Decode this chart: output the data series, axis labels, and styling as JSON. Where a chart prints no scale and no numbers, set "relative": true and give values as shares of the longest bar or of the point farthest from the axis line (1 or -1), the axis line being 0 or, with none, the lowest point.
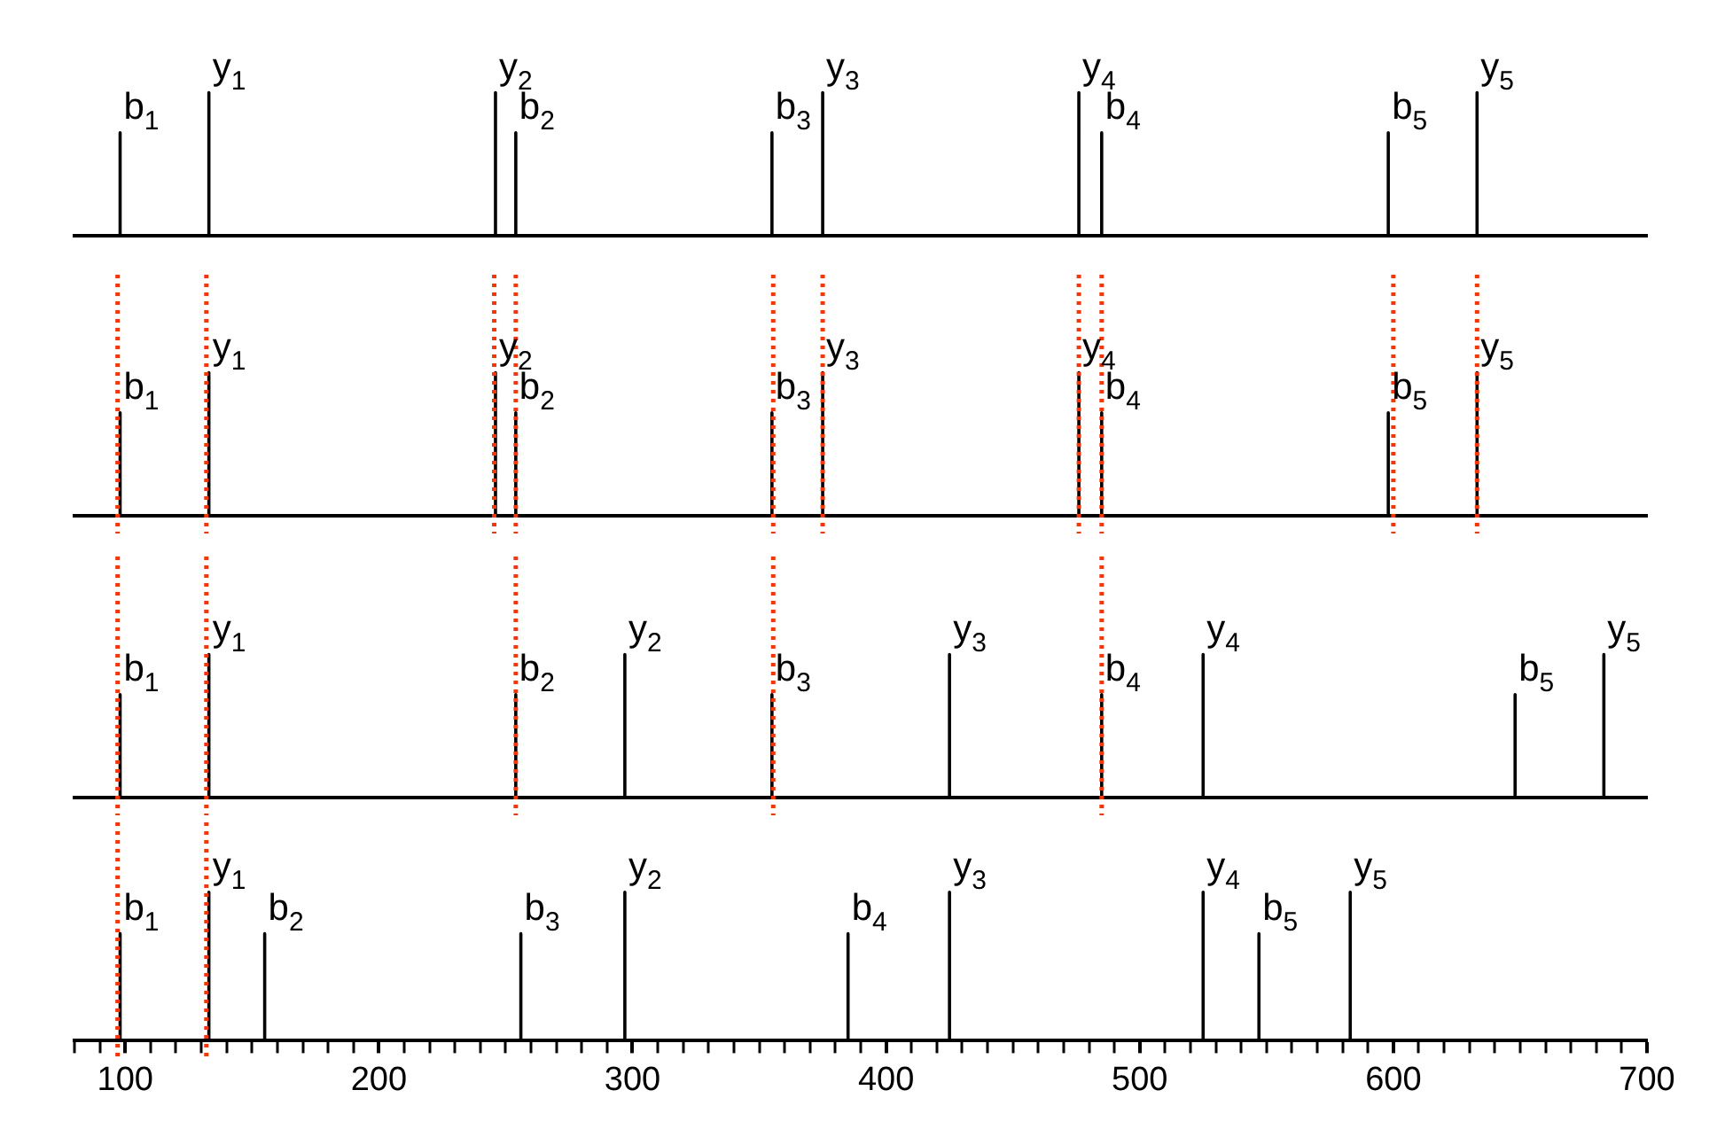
{
  "chart_data": [
    {
      "type": "line",
      "relative": true,
      "marker": "none",
      "xlim": [
        80,
        700
      ],
      "tick_labels": false,
      "grid": false,
      "legend": false,
      "series": [
        {
          "color": "#000000",
          "x": [
            98,
            98,
            98,
            133,
            133,
            133,
            246,
            246,
            246,
            254,
            254,
            254,
            355,
            355,
            355,
            375,
            375,
            375,
            476,
            476,
            476,
            485,
            485,
            485,
            598,
            598,
            598,
            633,
            633,
            633
          ],
          "values": [
            0,
            0.72,
            0,
            0,
            1,
            0,
            0,
            1,
            0,
            0,
            0.72,
            0,
            0,
            0.72,
            0,
            0,
            1,
            0,
            0,
            1,
            0,
            0,
            0.72,
            0,
            0,
            0.72,
            0,
            0,
            1,
            0
          ]
        }
      ],
      "annotations": [
        {
          "text": "b$_{1}$",
          "x": 98,
          "y": 0.72
        },
        {
          "text": "y$_{1}$",
          "x": 133,
          "y": 1
        },
        {
          "text": "y$_{2}$",
          "x": 246,
          "y": 1
        },
        {
          "text": "b$_{2}$",
          "x": 254,
          "y": 0.72
        },
        {
          "text": "b$_{3}$",
          "x": 355,
          "y": 0.72
        },
        {
          "text": "y$_{3}$",
          "x": 375,
          "y": 1
        },
        {
          "text": "y$_{4}$",
          "x": 476,
          "y": 1
        },
        {
          "text": "b$_{4}$",
          "x": 485,
          "y": 0.72
        },
        {
          "text": "b$_{5}$",
          "x": 598,
          "y": 0.72
        },
        {
          "text": "y$_{5}$",
          "x": 633,
          "y": 1
        }
      ]
    },
    {
      "type": "line",
      "relative": true,
      "marker": "none",
      "xlim": [
        80,
        700
      ],
      "tick_labels": false,
      "grid": false,
      "legend": false,
      "series": [
        {
          "color": "#000000",
          "x": [
            98,
            98,
            98,
            133,
            133,
            133,
            246,
            246,
            246,
            254,
            254,
            254,
            355,
            355,
            355,
            375,
            375,
            375,
            476,
            476,
            476,
            485,
            485,
            485,
            598,
            598,
            598,
            633,
            633,
            633
          ],
          "values": [
            0,
            0.72,
            0,
            0,
            1,
            0,
            0,
            1,
            0,
            0,
            0.72,
            0,
            0,
            0.72,
            0,
            0,
            1,
            0,
            0,
            1,
            0,
            0,
            0.72,
            0,
            0,
            0.72,
            0,
            0,
            1,
            0
          ]
        }
      ],
      "annotations": [
        {
          "text": "b$_{1}$",
          "x": 98,
          "y": 0.72
        },
        {
          "text": "y$_{1}$",
          "x": 133,
          "y": 1
        },
        {
          "text": "y$_{2}$",
          "x": 246,
          "y": 1
        },
        {
          "text": "b$_{2}$",
          "x": 254,
          "y": 0.72
        },
        {
          "text": "b$_{3}$",
          "x": 355,
          "y": 0.72
        },
        {
          "text": "y$_{3}$",
          "x": 375,
          "y": 1
        },
        {
          "text": "y$_{4}$",
          "x": 476,
          "y": 1
        },
        {
          "text": "b$_{4}$",
          "x": 485,
          "y": 0.72
        },
        {
          "text": "b$_{5}$",
          "x": 598,
          "y": 0.72
        },
        {
          "text": "y$_{5}$",
          "x": 633,
          "y": 1
        }
      ],
      "ref_lines": [
        {
          "axis": "x",
          "value": 97,
          "color": "#ff3300",
          "line_style": "dotted"
        },
        {
          "axis": "x",
          "value": 132,
          "color": "#ff3300",
          "line_style": "dotted"
        },
        {
          "axis": "x",
          "value": 245.5,
          "color": "#ff3300",
          "line_style": "dotted"
        },
        {
          "axis": "x",
          "value": 254,
          "color": "#ff3300",
          "line_style": "dotted"
        },
        {
          "axis": "x",
          "value": 355.5,
          "color": "#ff3300",
          "line_style": "dotted"
        },
        {
          "axis": "x",
          "value": 375,
          "color": "#ff3300",
          "line_style": "dotted"
        },
        {
          "axis": "x",
          "value": 476,
          "color": "#ff3300",
          "line_style": "dotted"
        },
        {
          "axis": "x",
          "value": 485,
          "color": "#ff3300",
          "line_style": "dotted"
        },
        {
          "axis": "x",
          "value": 600,
          "color": "#ff3300",
          "line_style": "dotted"
        },
        {
          "axis": "x",
          "value": 633,
          "color": "#ff3300",
          "line_style": "dotted"
        }
      ]
    },
    {
      "type": "line",
      "relative": true,
      "marker": "none",
      "xlim": [
        80,
        700
      ],
      "tick_labels": false,
      "grid": false,
      "legend": false,
      "series": [
        {
          "color": "#000000",
          "x": [
            98,
            98,
            98,
            133,
            133,
            133,
            254,
            254,
            254,
            297,
            297,
            297,
            355,
            355,
            355,
            425,
            425,
            425,
            485,
            485,
            485,
            525,
            525,
            525,
            648,
            648,
            648,
            683,
            683,
            683
          ],
          "values": [
            0,
            0.72,
            0,
            0,
            1,
            0,
            0,
            0.72,
            0,
            0,
            1,
            0,
            0,
            0.72,
            0,
            0,
            1,
            0,
            0,
            0.72,
            0,
            0,
            1,
            0,
            0,
            0.72,
            0,
            0,
            1,
            0
          ]
        }
      ],
      "annotations": [
        {
          "text": "b$_{1}$",
          "x": 98,
          "y": 0.72
        },
        {
          "text": "y$_{1}$",
          "x": 133,
          "y": 1
        },
        {
          "text": "b$_{2}$",
          "x": 254,
          "y": 0.72
        },
        {
          "text": "y$_{2}$",
          "x": 297,
          "y": 1
        },
        {
          "text": "b$_{3}$",
          "x": 355,
          "y": 0.72
        },
        {
          "text": "y$_{3}$",
          "x": 425,
          "y": 1
        },
        {
          "text": "b$_{4}$",
          "x": 485,
          "y": 0.72
        },
        {
          "text": "y$_{4}$",
          "x": 525,
          "y": 1
        },
        {
          "text": "b$_{5}$",
          "x": 648,
          "y": 0.72
        },
        {
          "text": "y$_{5}$",
          "x": 683,
          "y": 1
        }
      ],
      "ref_lines": [
        {
          "axis": "x",
          "value": 97,
          "color": "#ff3300",
          "line_style": "dotted"
        },
        {
          "axis": "x",
          "value": 132,
          "color": "#ff3300",
          "line_style": "dotted"
        },
        {
          "axis": "x",
          "value": 254,
          "color": "#ff3300",
          "line_style": "dotted"
        },
        {
          "axis": "x",
          "value": 355.5,
          "color": "#ff3300",
          "line_style": "dotted"
        },
        {
          "axis": "x",
          "value": 485,
          "color": "#ff3300",
          "line_style": "dotted"
        }
      ]
    },
    {
      "type": "line",
      "relative": true,
      "marker": "none",
      "xlim": [
        80,
        700
      ],
      "tick_labels": "x",
      "grid": false,
      "legend": false,
      "xticks": [
        {
          "value": 80,
          "label": null
        },
        {
          "value": 90,
          "label": null
        },
        100,
        {
          "value": 110,
          "label": null
        },
        {
          "value": 120,
          "label": null
        },
        {
          "value": 130,
          "label": null
        },
        {
          "value": 140,
          "label": null
        },
        {
          "value": 150,
          "label": null
        },
        {
          "value": 160,
          "label": null
        },
        {
          "value": 170,
          "label": null
        },
        {
          "value": 180,
          "label": null
        },
        {
          "value": 190,
          "label": null
        },
        200,
        {
          "value": 210,
          "label": null
        },
        {
          "value": 220,
          "label": null
        },
        {
          "value": 230,
          "label": null
        },
        {
          "value": 240,
          "label": null
        },
        {
          "value": 250,
          "label": null
        },
        {
          "value": 260,
          "label": null
        },
        {
          "value": 270,
          "label": null
        },
        {
          "value": 280,
          "label": null
        },
        {
          "value": 290,
          "label": null
        },
        300,
        {
          "value": 310,
          "label": null
        },
        {
          "value": 320,
          "label": null
        },
        {
          "value": 330,
          "label": null
        },
        {
          "value": 340,
          "label": null
        },
        {
          "value": 350,
          "label": null
        },
        {
          "value": 360,
          "label": null
        },
        {
          "value": 370,
          "label": null
        },
        {
          "value": 380,
          "label": null
        },
        {
          "value": 390,
          "label": null
        },
        400,
        {
          "value": 410,
          "label": null
        },
        {
          "value": 420,
          "label": null
        },
        {
          "value": 430,
          "label": null
        },
        {
          "value": 440,
          "label": null
        },
        {
          "value": 450,
          "label": null
        },
        {
          "value": 460,
          "label": null
        },
        {
          "value": 470,
          "label": null
        },
        {
          "value": 480,
          "label": null
        },
        {
          "value": 490,
          "label": null
        },
        500,
        {
          "value": 510,
          "label": null
        },
        {
          "value": 520,
          "label": null
        },
        {
          "value": 530,
          "label": null
        },
        {
          "value": 540,
          "label": null
        },
        {
          "value": 550,
          "label": null
        },
        {
          "value": 560,
          "label": null
        },
        {
          "value": 570,
          "label": null
        },
        {
          "value": 580,
          "label": null
        },
        {
          "value": 590,
          "label": null
        },
        600,
        {
          "value": 610,
          "label": null
        },
        {
          "value": 620,
          "label": null
        },
        {
          "value": 630,
          "label": null
        },
        {
          "value": 640,
          "label": null
        },
        {
          "value": 650,
          "label": null
        },
        {
          "value": 660,
          "label": null
        },
        {
          "value": 670,
          "label": null
        },
        {
          "value": 680,
          "label": null
        },
        {
          "value": 690,
          "label": null
        },
        700
      ],
      "series": [
        {
          "color": "#000000",
          "x": [
            98,
            98,
            98,
            133,
            133,
            133,
            155,
            155,
            155,
            256,
            256,
            256,
            297,
            297,
            297,
            385,
            385,
            385,
            425,
            425,
            425,
            525,
            525,
            525,
            547,
            547,
            547,
            583,
            583,
            583
          ],
          "values": [
            0,
            0.72,
            0,
            0,
            1,
            0,
            0,
            0.72,
            0,
            0,
            0.72,
            0,
            0,
            1,
            0,
            0,
            0.72,
            0,
            0,
            1,
            0,
            0,
            1,
            0,
            0,
            0.72,
            0,
            0,
            1,
            0
          ]
        }
      ],
      "annotations": [
        {
          "text": "b$_{1}$",
          "x": 98,
          "y": 0.72
        },
        {
          "text": "y$_{1}$",
          "x": 133,
          "y": 1
        },
        {
          "text": "b$_{2}$",
          "x": 155,
          "y": 0.72
        },
        {
          "text": "b$_{3}$",
          "x": 256,
          "y": 0.72
        },
        {
          "text": "y$_{2}$",
          "x": 297,
          "y": 1
        },
        {
          "text": "b$_{4}$",
          "x": 385,
          "y": 0.72
        },
        {
          "text": "y$_{3}$",
          "x": 425,
          "y": 1
        },
        {
          "text": "y$_{4}$",
          "x": 525,
          "y": 1
        },
        {
          "text": "b$_{5}$",
          "x": 547,
          "y": 0.72
        },
        {
          "text": "y$_{5}$",
          "x": 583,
          "y": 1
        }
      ],
      "ref_lines": [
        {
          "axis": "x",
          "value": 97,
          "color": "#ff3300",
          "line_style": "dotted"
        },
        {
          "axis": "x",
          "value": 132,
          "color": "#ff3300",
          "line_style": "dotted"
        }
      ]
    }
  ]
}
